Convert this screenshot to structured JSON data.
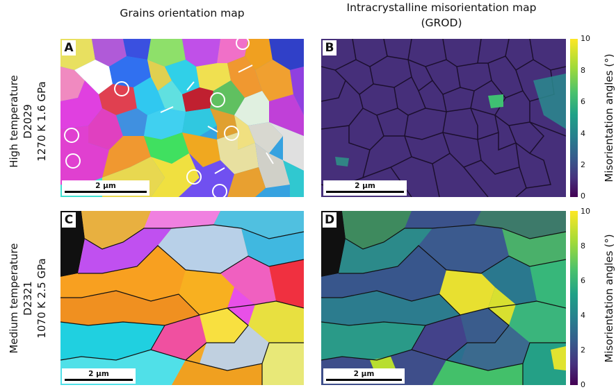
{
  "column_titles": {
    "left": "Grains orientation map",
    "right_line1": "Intracrystalline misorientation map",
    "right_line2": "(GROD)"
  },
  "rows": [
    {
      "line1": "High temperature",
      "line2": "D2029",
      "line3": "1270 K   1.6 GPa"
    },
    {
      "line1": "Medium temperature",
      "line2": "D2321",
      "line3": "1070 K   2.5 GPa"
    }
  ],
  "panels": {
    "A": {
      "label": "A",
      "scale_bar": "2 μm"
    },
    "B": {
      "label": "B",
      "scale_bar": "2 μm"
    },
    "C": {
      "label": "C",
      "scale_bar": "2 μm"
    },
    "D": {
      "label": "D",
      "scale_bar": "2 μm"
    }
  },
  "colorbars": [
    {
      "title": "Misorientation angles (°)",
      "ticks": [
        "10",
        "8",
        "6",
        "4",
        "2",
        "0"
      ]
    },
    {
      "title": "Misorientation angles (°)",
      "ticks": [
        "10",
        "8",
        "6",
        "4",
        "2",
        "0"
      ]
    }
  ],
  "colors": {
    "viridis_low": "#440154",
    "viridis_mid": "#21918c",
    "viridis_high": "#fde725"
  }
}
